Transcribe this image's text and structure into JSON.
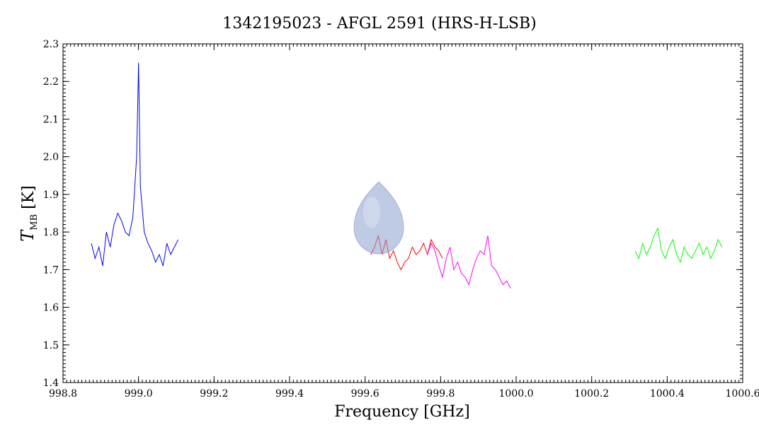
{
  "chart_data": {
    "type": "line",
    "title": "1342195023 - AFGL 2591 (HRS-H-LSB)",
    "xlabel": "Frequency [GHz]",
    "ylabel": {
      "main": "T",
      "sub": "MB",
      "unit": " [K]"
    },
    "xlim": [
      998.8,
      1000.6
    ],
    "ylim": [
      1.4,
      2.3
    ],
    "x_ticks": [
      998.8,
      999.0,
      999.2,
      999.4,
      999.6,
      999.8,
      1000.0,
      1000.2,
      1000.4,
      1000.6
    ],
    "x_tick_labels": [
      "998.8",
      "999.0",
      "999.2",
      "999.4",
      "999.6",
      "999.8",
      "1000.0",
      "1000.2",
      "1000.4",
      "1000.6"
    ],
    "y_ticks": [
      1.4,
      1.5,
      1.6,
      1.7,
      1.8,
      1.9,
      2.0,
      2.1,
      2.2,
      2.3
    ],
    "y_tick_labels": [
      "1.4",
      "1.5",
      "1.6",
      "1.7",
      "1.8",
      "1.9",
      "2.0",
      "2.1",
      "2.2",
      "2.3"
    ],
    "grid": false,
    "series": [
      {
        "color": "#0000ff",
        "x": [
          998.875,
          998.885,
          998.895,
          998.905,
          998.915,
          998.925,
          998.935,
          998.945,
          998.955,
          998.965,
          998.975,
          998.985,
          998.995,
          999.0,
          999.005,
          999.015,
          999.025,
          999.035,
          999.045,
          999.055,
          999.065,
          999.075,
          999.085,
          999.095,
          999.105
        ],
        "y": [
          1.77,
          1.73,
          1.76,
          1.71,
          1.8,
          1.76,
          1.82,
          1.85,
          1.83,
          1.8,
          1.79,
          1.84,
          2.0,
          2.25,
          1.92,
          1.8,
          1.77,
          1.75,
          1.72,
          1.74,
          1.71,
          1.77,
          1.74,
          1.76,
          1.78
        ]
      },
      {
        "color": "#ff0000",
        "x": [
          999.615,
          999.625,
          999.635,
          999.645,
          999.655,
          999.665,
          999.675,
          999.685,
          999.695,
          999.705,
          999.715,
          999.725,
          999.735,
          999.745,
          999.755,
          999.765,
          999.775,
          999.785,
          999.795,
          999.805
        ],
        "y": [
          1.74,
          1.76,
          1.79,
          1.74,
          1.78,
          1.73,
          1.75,
          1.72,
          1.7,
          1.72,
          1.73,
          1.76,
          1.74,
          1.75,
          1.77,
          1.74,
          1.78,
          1.76,
          1.75,
          1.73
        ]
      },
      {
        "color": "#ff00ff",
        "x": [
          999.765,
          999.775,
          999.785,
          999.795,
          999.805,
          999.815,
          999.825,
          999.835,
          999.845,
          999.855,
          999.865,
          999.875,
          999.885,
          999.895,
          999.905,
          999.915,
          999.925,
          999.935,
          999.945,
          999.955,
          999.965,
          999.975,
          999.985
        ],
        "y": [
          1.74,
          1.77,
          1.75,
          1.71,
          1.68,
          1.73,
          1.76,
          1.7,
          1.72,
          1.69,
          1.68,
          1.66,
          1.7,
          1.73,
          1.75,
          1.74,
          1.79,
          1.71,
          1.7,
          1.68,
          1.66,
          1.67,
          1.65
        ]
      },
      {
        "color": "#00ff00",
        "x": [
          1000.315,
          1000.325,
          1000.335,
          1000.345,
          1000.355,
          1000.365,
          1000.375,
          1000.385,
          1000.395,
          1000.405,
          1000.415,
          1000.425,
          1000.435,
          1000.445,
          1000.455,
          1000.465,
          1000.475,
          1000.485,
          1000.495,
          1000.505,
          1000.515,
          1000.525,
          1000.535,
          1000.545
        ],
        "y": [
          1.75,
          1.73,
          1.77,
          1.74,
          1.76,
          1.79,
          1.81,
          1.75,
          1.73,
          1.76,
          1.78,
          1.74,
          1.72,
          1.76,
          1.74,
          1.73,
          1.75,
          1.77,
          1.74,
          1.76,
          1.73,
          1.75,
          1.78,
          1.76
        ]
      }
    ]
  }
}
